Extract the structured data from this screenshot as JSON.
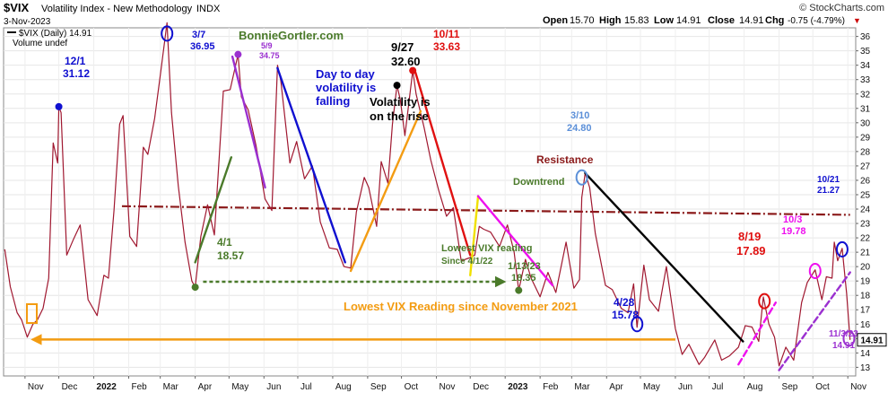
{
  "header": {
    "symbol": "$VIX",
    "name": "Volatility Index - New Methodology",
    "exchange": "INDX",
    "date": "3-Nov-2023",
    "copyright": "© StockCharts.com",
    "open_label": "Open",
    "open_value": "15.70",
    "high_label": "High",
    "high_value": "15.83",
    "low_label": "Low",
    "low_value": "14.91",
    "close_label": "Close",
    "close_value": "14.91",
    "chg_label": "Chg",
    "chg_value": "-0.75 (-4.79%)",
    "chg_arrow": "▼"
  },
  "legend": {
    "series_label": "$VIX (Daily) 14.91",
    "volume_label": "Volume undef"
  },
  "watermark": "BonnieGortler.com",
  "last_price_tag": "14.91",
  "colors": {
    "price": "#a01830",
    "resistance": "#8b1a1a",
    "orange": "#f39c12",
    "blue": "#1010d0",
    "green": "#4a7a2a",
    "red": "#e01010",
    "magenta": "#ee10ee",
    "purple": "#9b30d0",
    "black": "#000000",
    "lightblue": "#5b8fd8",
    "yellow": "#f0e000"
  },
  "chart_data": {
    "type": "line",
    "title": "$VIX Volatility Index - New Methodology INDX",
    "xlabel": "",
    "ylabel": "",
    "ylim": [
      12.4,
      36.6
    ],
    "y_ticks": [
      13,
      14,
      15,
      16,
      17,
      18,
      19,
      20,
      21,
      22,
      23,
      24,
      25,
      26,
      27,
      28,
      29,
      30,
      31,
      32,
      33,
      34,
      35,
      36
    ],
    "x_months": [
      {
        "label": "Nov",
        "x": "2021-11-01"
      },
      {
        "label": "Dec",
        "x": "2021-12-01"
      },
      {
        "label": "2022",
        "x": "2022-01-01"
      },
      {
        "label": "Feb",
        "x": "2022-02-01"
      },
      {
        "label": "Mar",
        "x": "2022-03-01"
      },
      {
        "label": "Apr",
        "x": "2022-04-01"
      },
      {
        "label": "May",
        "x": "2022-05-01"
      },
      {
        "label": "Jun",
        "x": "2022-06-01"
      },
      {
        "label": "Jul",
        "x": "2022-07-01"
      },
      {
        "label": "Aug",
        "x": "2022-08-01"
      },
      {
        "label": "Sep",
        "x": "2022-09-01"
      },
      {
        "label": "Oct",
        "x": "2022-10-01"
      },
      {
        "label": "Nov",
        "x": "2022-11-01"
      },
      {
        "label": "Dec",
        "x": "2022-12-01"
      },
      {
        "label": "2023",
        "x": "2023-01-01"
      },
      {
        "label": "Feb",
        "x": "2023-02-01"
      },
      {
        "label": "Mar",
        "x": "2023-03-01"
      },
      {
        "label": "Apr",
        "x": "2023-04-01"
      },
      {
        "label": "May",
        "x": "2023-05-01"
      },
      {
        "label": "Jun",
        "x": "2023-06-01"
      },
      {
        "label": "Jul",
        "x": "2023-07-01"
      },
      {
        "label": "Aug",
        "x": "2023-08-01"
      },
      {
        "label": "Sep",
        "x": "2023-09-01"
      },
      {
        "label": "Oct",
        "x": "2023-10-01"
      },
      {
        "label": "Nov",
        "x": "2023-11-01"
      }
    ],
    "series": [
      {
        "name": "$VIX (Daily)",
        "points": [
          [
            "2021-10-14",
            21.2
          ],
          [
            "2021-10-19",
            18.6
          ],
          [
            "2021-10-25",
            16.8
          ],
          [
            "2021-10-29",
            16.3
          ],
          [
            "2021-11-03",
            15.1
          ],
          [
            "2021-11-08",
            16.0
          ],
          [
            "2021-11-12",
            16.3
          ],
          [
            "2021-11-17",
            17.1
          ],
          [
            "2021-11-22",
            19.2
          ],
          [
            "2021-11-26",
            28.6
          ],
          [
            "2021-11-30",
            27.2
          ],
          [
            "2021-12-01",
            31.12
          ],
          [
            "2021-12-03",
            30.7
          ],
          [
            "2021-12-08",
            20.8
          ],
          [
            "2021-12-14",
            21.9
          ],
          [
            "2021-12-20",
            22.9
          ],
          [
            "2021-12-27",
            17.7
          ],
          [
            "2022-01-04",
            16.6
          ],
          [
            "2022-01-10",
            19.4
          ],
          [
            "2022-01-14",
            19.2
          ],
          [
            "2022-01-19",
            23.9
          ],
          [
            "2022-01-24",
            29.9
          ],
          [
            "2022-01-27",
            30.5
          ],
          [
            "2022-02-02",
            22.1
          ],
          [
            "2022-02-08",
            21.4
          ],
          [
            "2022-02-14",
            28.3
          ],
          [
            "2022-02-18",
            27.8
          ],
          [
            "2022-02-24",
            30.3
          ],
          [
            "2022-03-01",
            33.3
          ],
          [
            "2022-03-07",
            36.95
          ],
          [
            "2022-03-11",
            30.7
          ],
          [
            "2022-03-17",
            25.6
          ],
          [
            "2022-03-23",
            21.7
          ],
          [
            "2022-03-29",
            19.0
          ],
          [
            "2022-04-01",
            18.57
          ],
          [
            "2022-04-06",
            22.1
          ],
          [
            "2022-04-12",
            24.3
          ],
          [
            "2022-04-18",
            22.2
          ],
          [
            "2022-04-26",
            32.2
          ],
          [
            "2022-05-02",
            32.3
          ],
          [
            "2022-05-09",
            34.75
          ],
          [
            "2022-05-12",
            31.8
          ],
          [
            "2022-05-18",
            30.9
          ],
          [
            "2022-05-25",
            28.4
          ],
          [
            "2022-06-02",
            24.7
          ],
          [
            "2022-06-08",
            23.9
          ],
          [
            "2022-06-13",
            34.0
          ],
          [
            "2022-06-16",
            32.9
          ],
          [
            "2022-06-24",
            27.2
          ],
          [
            "2022-06-30",
            28.7
          ],
          [
            "2022-07-07",
            26.1
          ],
          [
            "2022-07-14",
            27.0
          ],
          [
            "2022-07-21",
            23.1
          ],
          [
            "2022-07-29",
            21.3
          ],
          [
            "2022-08-05",
            21.2
          ],
          [
            "2022-08-11",
            20.0
          ],
          [
            "2022-08-17",
            19.9
          ],
          [
            "2022-08-22",
            23.8
          ],
          [
            "2022-08-29",
            26.2
          ],
          [
            "2022-09-02",
            25.5
          ],
          [
            "2022-09-09",
            22.8
          ],
          [
            "2022-09-13",
            27.3
          ],
          [
            "2022-09-19",
            25.8
          ],
          [
            "2022-09-23",
            29.9
          ],
          [
            "2022-09-27",
            32.6
          ],
          [
            "2022-09-30",
            31.6
          ],
          [
            "2022-10-04",
            29.1
          ],
          [
            "2022-10-11",
            33.63
          ],
          [
            "2022-10-14",
            32.0
          ],
          [
            "2022-10-21",
            29.7
          ],
          [
            "2022-10-27",
            27.4
          ],
          [
            "2022-11-03",
            25.3
          ],
          [
            "2022-11-10",
            23.5
          ],
          [
            "2022-11-16",
            24.1
          ],
          [
            "2022-11-23",
            20.4
          ],
          [
            "2022-11-30",
            20.6
          ],
          [
            "2022-12-05",
            20.8
          ],
          [
            "2022-12-09",
            22.8
          ],
          [
            "2022-12-13",
            22.6
          ],
          [
            "2022-12-19",
            22.4
          ],
          [
            "2022-12-27",
            21.4
          ],
          [
            "2023-01-03",
            22.9
          ],
          [
            "2023-01-09",
            21.0
          ],
          [
            "2023-01-13",
            18.35
          ],
          [
            "2023-01-19",
            20.5
          ],
          [
            "2023-01-24",
            19.2
          ],
          [
            "2023-02-01",
            17.9
          ],
          [
            "2023-02-08",
            19.6
          ],
          [
            "2023-02-15",
            18.2
          ],
          [
            "2023-02-24",
            21.7
          ],
          [
            "2023-03-03",
            18.5
          ],
          [
            "2023-03-08",
            19.1
          ],
          [
            "2023-03-10",
            24.8
          ],
          [
            "2023-03-13",
            26.5
          ],
          [
            "2023-03-17",
            25.5
          ],
          [
            "2023-03-22",
            22.3
          ],
          [
            "2023-03-31",
            18.7
          ],
          [
            "2023-04-06",
            18.4
          ],
          [
            "2023-04-14",
            17.1
          ],
          [
            "2023-04-20",
            16.8
          ],
          [
            "2023-04-25",
            18.8
          ],
          [
            "2023-04-28",
            15.78
          ],
          [
            "2023-05-04",
            20.1
          ],
          [
            "2023-05-09",
            17.7
          ],
          [
            "2023-05-17",
            16.9
          ],
          [
            "2023-05-24",
            20.0
          ],
          [
            "2023-06-01",
            15.7
          ],
          [
            "2023-06-07",
            13.9
          ],
          [
            "2023-06-13",
            14.6
          ],
          [
            "2023-06-22",
            13.2
          ],
          [
            "2023-06-27",
            13.7
          ],
          [
            "2023-07-06",
            14.9
          ],
          [
            "2023-07-12",
            13.5
          ],
          [
            "2023-07-19",
            13.8
          ],
          [
            "2023-07-27",
            14.4
          ],
          [
            "2023-08-02",
            15.9
          ],
          [
            "2023-08-08",
            15.8
          ],
          [
            "2023-08-14",
            14.8
          ],
          [
            "2023-08-18",
            17.89
          ],
          [
            "2023-08-23",
            16.0
          ],
          [
            "2023-08-28",
            15.1
          ],
          [
            "2023-09-01",
            13.1
          ],
          [
            "2023-09-07",
            14.4
          ],
          [
            "2023-09-14",
            13.5
          ],
          [
            "2023-09-21",
            17.5
          ],
          [
            "2023-09-26",
            18.9
          ],
          [
            "2023-10-03",
            19.78
          ],
          [
            "2023-10-09",
            17.7
          ],
          [
            "2023-10-13",
            19.3
          ],
          [
            "2023-10-18",
            19.2
          ],
          [
            "2023-10-20",
            21.7
          ],
          [
            "2023-10-23",
            20.4
          ],
          [
            "2023-10-27",
            21.27
          ],
          [
            "2023-10-31",
            18.1
          ],
          [
            "2023-11-03",
            14.91
          ]
        ]
      }
    ],
    "resistance": {
      "name": "Resistance",
      "start": [
        "2022-01-26",
        24.2
      ],
      "end": [
        "2023-11-03",
        23.6
      ]
    },
    "trend_lines": [
      {
        "color": "green",
        "from": [
          "2022-04-01",
          20.3
        ],
        "to": [
          "2022-05-03",
          27.6
        ]
      },
      {
        "color": "purple",
        "from": [
          "2022-05-04",
          34.6
        ],
        "to": [
          "2022-06-02",
          25.5
        ]
      },
      {
        "color": "blue",
        "from": [
          "2022-06-13",
          33.8
        ],
        "to": [
          "2022-08-12",
          20.3
        ]
      },
      {
        "color": "orange",
        "from": [
          "2022-08-17",
          19.7
        ],
        "to": [
          "2022-10-18",
          30.8
        ]
      },
      {
        "color": "red",
        "from": [
          "2022-10-13",
          33.6
        ],
        "to": [
          "2022-12-01",
          20.8
        ]
      },
      {
        "color": "yellow",
        "from": [
          "2022-12-01",
          19.4
        ],
        "to": [
          "2022-12-08",
          24.9
        ]
      },
      {
        "color": "magenta",
        "from": [
          "2022-12-08",
          24.9
        ],
        "to": [
          "2023-02-12",
          18.7
        ]
      },
      {
        "color": "black",
        "from": [
          "2023-03-13",
          26.5
        ],
        "to": [
          "2023-07-31",
          14.8
        ]
      },
      {
        "color": "magenta-dash",
        "from": [
          "2023-07-27",
          13.2
        ],
        "to": [
          "2023-08-29",
          17.5
        ]
      },
      {
        "color": "purple-dash",
        "from": [
          "2023-09-01",
          12.8
        ],
        "to": [
          "2023-11-03",
          19.6
        ]
      }
    ],
    "horizontal_lines": [
      {
        "name": "lowest-since-4-1-22",
        "color": "green",
        "from": [
          "2022-04-08",
          18.95
        ],
        "to": [
          "2022-12-31",
          18.95
        ],
        "style": "dotted-arrow"
      },
      {
        "name": "lowest-since-nov-2021",
        "color": "orange",
        "from": [
          "2021-11-08",
          14.93
        ],
        "to": [
          "2023-06-01",
          14.93
        ],
        "style": "arrow-left"
      }
    ],
    "annotations": [
      {
        "date_text": "12/1",
        "value_text": "31.12",
        "color": "blue",
        "marker": "dot",
        "at": [
          "2021-12-01",
          31.12
        ]
      },
      {
        "date_text": "3/7",
        "value_text": "36.95",
        "color": "blue",
        "marker": "ellipse",
        "at": [
          "2022-03-07",
          36.2
        ]
      },
      {
        "date_text": "5/9",
        "value_text": "34.75",
        "color": "purple",
        "marker": "dot",
        "at": [
          "2022-05-09",
          34.75
        ]
      },
      {
        "date_text": "4/1",
        "value_text": "18.57",
        "color": "green",
        "marker": "dot",
        "at": [
          "2022-04-01",
          18.57
        ]
      },
      {
        "date_text": "9/27",
        "value_text": "32.60",
        "color": "black",
        "marker": "dot",
        "at": [
          "2022-09-27",
          32.6
        ]
      },
      {
        "date_text": "10/11",
        "value_text": "33.63",
        "color": "red",
        "marker": "dot",
        "at": [
          "2022-10-11",
          33.63
        ]
      },
      {
        "date_text": "1/13/23",
        "value_text": "18.35",
        "color": "green",
        "marker": "dot",
        "at": [
          "2023-01-13",
          18.35
        ]
      },
      {
        "date_text": "3/10",
        "value_text": "24.80",
        "color": "lightblue",
        "marker": "ellipse",
        "at": [
          "2023-03-10",
          26.2
        ]
      },
      {
        "date_text": "4/28",
        "value_text": "15.78",
        "color": "blue",
        "marker": "ellipse",
        "at": [
          "2023-04-28",
          16.0
        ]
      },
      {
        "date_text": "8/19",
        "value_text": "17.89",
        "color": "red",
        "marker": "ellipse",
        "at": [
          "2023-08-19",
          17.6
        ]
      },
      {
        "date_text": "10/3",
        "value_text": "19.78",
        "color": "magenta",
        "marker": "ellipse",
        "at": [
          "2023-10-03",
          19.7
        ]
      },
      {
        "date_text": "10/21",
        "value_text": "21.27",
        "color": "blue",
        "marker": "ellipse",
        "at": [
          "2023-10-27",
          21.2
        ]
      },
      {
        "date_text": "11/3/23",
        "value_text": "14.91",
        "color": "purple",
        "marker": "ellipse",
        "at": [
          "2023-11-02",
          15.0
        ]
      }
    ],
    "text_notes": [
      {
        "text": "Day to day",
        "color": "blue"
      },
      {
        "text": "volatility is",
        "color": "blue"
      },
      {
        "text": "falling",
        "color": "blue"
      },
      {
        "text": "Volatility is",
        "color": "black"
      },
      {
        "text": "on the rise",
        "color": "black"
      },
      {
        "text": "Resistance",
        "color": "resistance"
      },
      {
        "text": "Downtrend",
        "color": "green"
      },
      {
        "text": "Lowest VIX reading",
        "color": "green"
      },
      {
        "text": "Since 4/1/22",
        "color": "green"
      },
      {
        "text": "Lowest VIX Reading since November 2021",
        "color": "orange"
      }
    ]
  }
}
